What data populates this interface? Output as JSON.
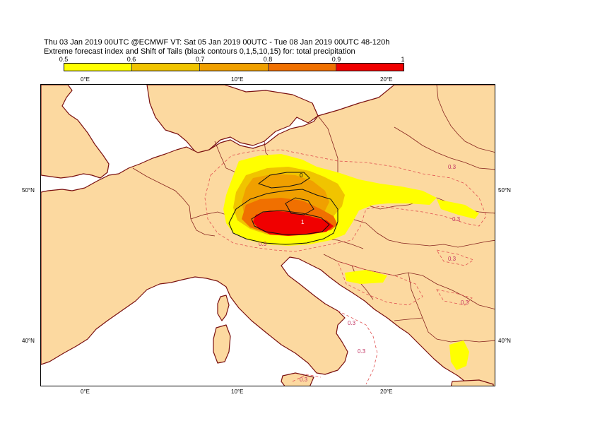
{
  "header": {
    "line1": "Thu 03 Jan 2019 00UTC @ECMWF VT: Sat 05 Jan 2019 00UTC - Tue 08 Jan 2019 00UTC  48-120h",
    "line2": "Extreme forecast index and Shift of Tails (black contours 0,1,5,10,15) for: total precipitation"
  },
  "colorbar": {
    "labels": [
      "0.5",
      "0.6",
      "0.7",
      "0.8",
      "0.9",
      "1"
    ],
    "colors": [
      "#ffff00",
      "#f0c400",
      "#f0a000",
      "#f07000",
      "#f00000"
    ]
  },
  "axes": {
    "lon_top": [
      "0°E",
      "10°E",
      "20°E"
    ],
    "lon_bottom": [
      "0°E",
      "10°E",
      "20°E"
    ],
    "lat_left": [
      "50°N",
      "40°N"
    ],
    "lat_right": [
      "50°N",
      "40°N"
    ]
  },
  "map": {
    "land_color": "#fcd9a0",
    "sea_color": "#ffffff",
    "coast_color": "#7a1010",
    "contour_labels": {
      "sot_zero": "0",
      "sot_one": "1",
      "efi_03_a": "0.3",
      "efi_03_b": "0.3",
      "efi_03_c": "0.3",
      "efi_03_d": "0.3",
      "efi_03_e": "0.3",
      "efi_03_f": "0.3",
      "efi_03_g": "0.3",
      "efi_03_h": "0.3"
    }
  }
}
